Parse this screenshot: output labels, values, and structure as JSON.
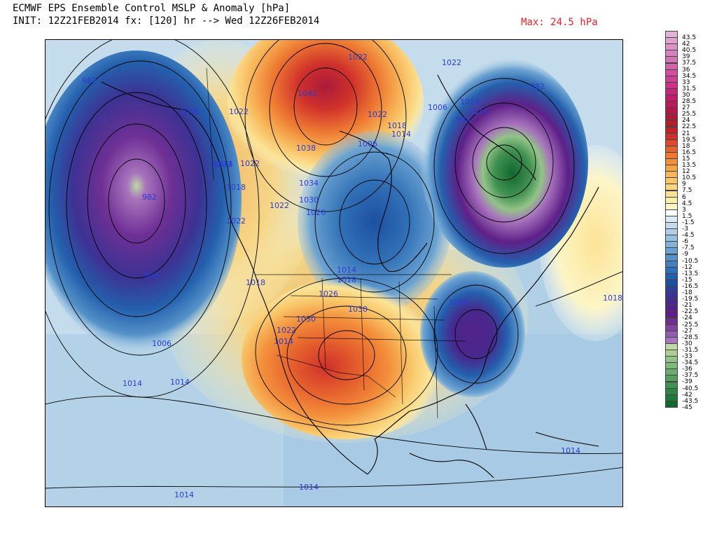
{
  "header": {
    "title_line1": "ECMWF EPS Ensemble Control MSLP & Anomaly [hPa]",
    "title_line2": "INIT: 12Z21FEB2014 fx: [120] hr --> Wed 12Z26FEB2014",
    "max_label": "Max: 24.5 hPa"
  },
  "isobar_labels": [
    {
      "text": "982",
      "id": "label-982-pacific-a"
    },
    {
      "text": "982",
      "id": "label-982-pacific-b"
    },
    {
      "text": "998",
      "id": "label-998-pacific"
    },
    {
      "text": "1006",
      "id": "label-1006-pacific-s"
    },
    {
      "text": "1014",
      "id": "label-1014-pacific"
    },
    {
      "text": "1014",
      "id": "label-1014-sw"
    },
    {
      "text": "1006",
      "id": "label-1006-alaska"
    },
    {
      "text": "1022",
      "id": "label-1022-yukon"
    },
    {
      "text": "1042",
      "id": "label-1042"
    },
    {
      "text": "1038",
      "id": "label-1038"
    },
    {
      "text": "1034",
      "id": "label-1034"
    },
    {
      "text": "1030",
      "id": "label-1030-north"
    },
    {
      "text": "1026",
      "id": "label-1026-north"
    },
    {
      "text": "1022",
      "id": "label-1022-bc-a"
    },
    {
      "text": "1022",
      "id": "label-1022-bc-b"
    },
    {
      "text": "1022",
      "id": "label-1022-bc-c"
    },
    {
      "text": "1018",
      "id": "label-1018-bc"
    },
    {
      "text": "1014",
      "id": "label-1014-bc"
    },
    {
      "text": "1022",
      "id": "label-1022-prairie"
    },
    {
      "text": "1018",
      "id": "label-1018-west"
    },
    {
      "text": "1022",
      "id": "label-1022-arctic-a"
    },
    {
      "text": "1022",
      "id": "label-1022-arctic-b"
    },
    {
      "text": "1018",
      "id": "label-1018-hudson"
    },
    {
      "text": "1014",
      "id": "label-1014-hudson"
    },
    {
      "text": "1006",
      "id": "label-1006-hudson"
    },
    {
      "text": "1006",
      "id": "label-1006-labrador"
    },
    {
      "text": "1014",
      "id": "label-1014-labrador-a"
    },
    {
      "text": "1014",
      "id": "label-1014-labrador-b"
    },
    {
      "text": "1022",
      "id": "label-1022-greenland"
    },
    {
      "text": "998",
      "id": "label-998-labrador"
    },
    {
      "text": "982",
      "id": "label-982-atlantic"
    },
    {
      "text": "1014",
      "id": "label-1014-plains-a"
    },
    {
      "text": "1018",
      "id": "label-1018-plains"
    },
    {
      "text": "1026",
      "id": "label-1026-plains"
    },
    {
      "text": "1030",
      "id": "label-1030-plains"
    },
    {
      "text": "1030",
      "id": "label-1030-rockies"
    },
    {
      "text": "1022",
      "id": "label-1022-rockies"
    },
    {
      "text": "1014",
      "id": "label-1014-rockies"
    },
    {
      "text": "1006",
      "id": "label-1006-eastcoast"
    },
    {
      "text": "1018",
      "id": "label-1018-atlantic"
    },
    {
      "text": "1014",
      "id": "label-1014-caribbean"
    },
    {
      "text": "1014",
      "id": "label-1014-mexico"
    },
    {
      "text": "1014",
      "id": "label-1014-pacific-s"
    }
  ],
  "colorbar": {
    "ticks": [
      "43.5",
      "42",
      "40.5",
      "39",
      "37.5",
      "36",
      "34.5",
      "33",
      "31.5",
      "30",
      "28.5",
      "27",
      "25.5",
      "24",
      "22.5",
      "21",
      "19.5",
      "18",
      "16.5",
      "15",
      "13.5",
      "12",
      "10.5",
      "9",
      "7.5",
      "6",
      "4.5",
      "3",
      "1.5",
      "-1.5",
      "-3",
      "-4.5",
      "-6",
      "-7.5",
      "-9",
      "-10.5",
      "-12",
      "-13.5",
      "-15",
      "-16.5",
      "-18",
      "-19.5",
      "-21",
      "-22.5",
      "-24",
      "-25.5",
      "-27",
      "-28.5",
      "-30",
      "-31.5",
      "-33",
      "-34.5",
      "-36",
      "-37.5",
      "-39",
      "-40.5",
      "-42",
      "-43.5",
      "-45"
    ],
    "colors": [
      "#e3b2d8",
      "#dfa3d0",
      "#db93c8",
      "#d883bf",
      "#d673b5",
      "#d462aa",
      "#d2509f",
      "#cf4094",
      "#cc3289",
      "#c8267b",
      "#c21d6c",
      "#bb1a5b",
      "#b3184a",
      "#ab1a3a",
      "#b21f2c",
      "#c0242a",
      "#d0312b",
      "#dd4a2c",
      "#e6612d",
      "#ee7932",
      "#f38f3b",
      "#f6a448",
      "#f8b658",
      "#f9c76a",
      "#fad67f",
      "#fbe396",
      "#fcedad",
      "#fdf5c6",
      "#ffffff",
      "#dbe9f2",
      "#c5dcec",
      "#afcfe6",
      "#98c1e0",
      "#81b2d9",
      "#6aa2d1",
      "#5592c9",
      "#4281c1",
      "#3170b7",
      "#2460ad",
      "#1c50a1",
      "#2d3f99",
      "#3d3293",
      "#48288d",
      "#532289",
      "#5e2088",
      "#6f3095",
      "#8145a1",
      "#945cae",
      "#a874bd",
      "#bdd9a6",
      "#a9cf97",
      "#93c388",
      "#7fb87b",
      "#6aac6d",
      "#559f5f",
      "#419252",
      "#2f8546",
      "#1f773a",
      "#11682f"
    ]
  }
}
